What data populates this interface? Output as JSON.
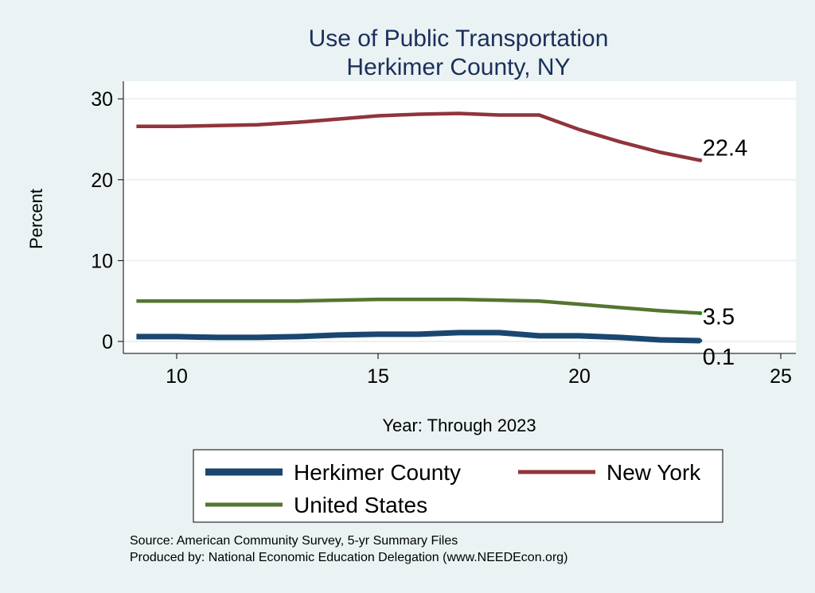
{
  "chart_data": {
    "type": "line",
    "title": "Use of Public Transportation",
    "subtitle": "Herkimer County, NY",
    "xlabel": "Year: Through 2023",
    "ylabel": "Percent",
    "xlim": [
      8.7,
      25.3
    ],
    "ylim": [
      -1.5,
      31.5
    ],
    "xticks": [
      10,
      15,
      20,
      25
    ],
    "yticks": [
      0,
      10,
      20,
      30
    ],
    "grid": true,
    "legend_position": "bottom",
    "x": [
      9,
      10,
      11,
      12,
      13,
      14,
      15,
      16,
      17,
      18,
      19,
      20,
      21,
      22,
      23
    ],
    "series": [
      {
        "name": "Herkimer County",
        "color": "#1a476f",
        "values": [
          0.6,
          0.6,
          0.5,
          0.5,
          0.6,
          0.8,
          0.9,
          0.9,
          1.1,
          1.1,
          0.7,
          0.7,
          0.5,
          0.2,
          0.1
        ],
        "end_label": "0.1",
        "width": 7
      },
      {
        "name": "New York",
        "color": "#90353b",
        "values": [
          26.6,
          26.6,
          26.7,
          26.8,
          27.1,
          27.5,
          27.9,
          28.1,
          28.2,
          28.0,
          28.0,
          26.2,
          24.7,
          23.4,
          22.4
        ],
        "end_label": "22.4",
        "width": 4.5
      },
      {
        "name": "United States",
        "color": "#55752f",
        "values": [
          5.0,
          5.0,
          5.0,
          5.0,
          5.0,
          5.1,
          5.2,
          5.2,
          5.2,
          5.1,
          5.0,
          4.6,
          4.2,
          3.8,
          3.5
        ],
        "end_label": "3.5",
        "width": 4.5
      }
    ]
  },
  "notes": {
    "source": "Source: American Community Survey, 5-yr Summary Files",
    "produced": "Produced by: National Economic Education Delegation (www.NEEDEcon.org)"
  }
}
